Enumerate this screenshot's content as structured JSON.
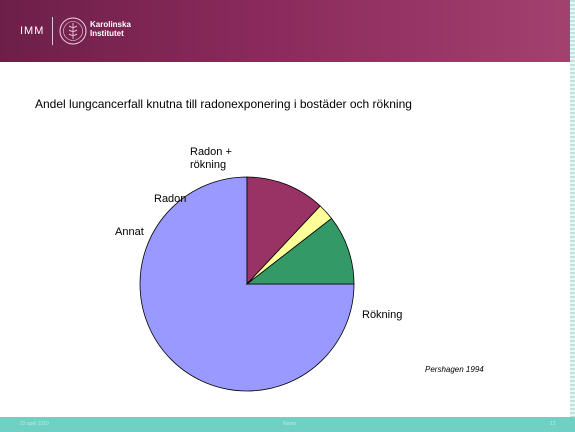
{
  "header": {
    "dept": "IMM",
    "institution_line1": "Karolinska",
    "institution_line2": "Institutet",
    "background": "#8a2a5c"
  },
  "slide": {
    "title": "Andel lungcancerfall knutna till radonexponering   i bostäder och rökning",
    "source": "Pershagen 1994"
  },
  "footer": {
    "date": "22 april 2010",
    "center": "Namn",
    "page": "13",
    "background": "#6fd0c3"
  },
  "chart_data": {
    "type": "pie",
    "start": "3 o'clock, clockwise",
    "slices": [
      {
        "label": "Rökning",
        "value": 75,
        "color": "#9999ff"
      },
      {
        "label": "Annat",
        "value": 12,
        "color": "#993366"
      },
      {
        "label": "Radon",
        "value": 2.5,
        "color": "#ffff99"
      },
      {
        "label_lines": [
          "Radon +",
          "rökning"
        ],
        "value": 10.5,
        "color": "#339966"
      }
    ],
    "legend": "none"
  }
}
